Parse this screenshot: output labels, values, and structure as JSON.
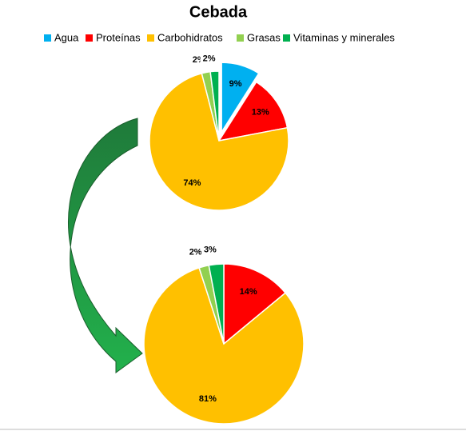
{
  "chart_data": [
    {
      "type": "pie",
      "title": "Cebada",
      "categories": [
        "Agua",
        "Proteínas",
        "Carbohidratos",
        "Grasas",
        "Vitaminas y minerales"
      ],
      "values": [
        9,
        13,
        74,
        2,
        2
      ],
      "value_labels": [
        "9%",
        "13%",
        "74%",
        "2%",
        "2%"
      ],
      "colors": [
        "#00b0f0",
        "#ff0000",
        "#ffc000",
        "#92d050",
        "#00b050"
      ],
      "exploded": [
        true,
        false,
        false,
        false,
        false
      ]
    },
    {
      "type": "pie",
      "values": [
        14,
        81,
        2,
        3
      ],
      "value_labels": [
        "14%",
        "81%",
        "2%",
        "3%"
      ],
      "colors": [
        "#ff0000",
        "#ffc000",
        "#92d050",
        "#00b050"
      ]
    }
  ]
}
